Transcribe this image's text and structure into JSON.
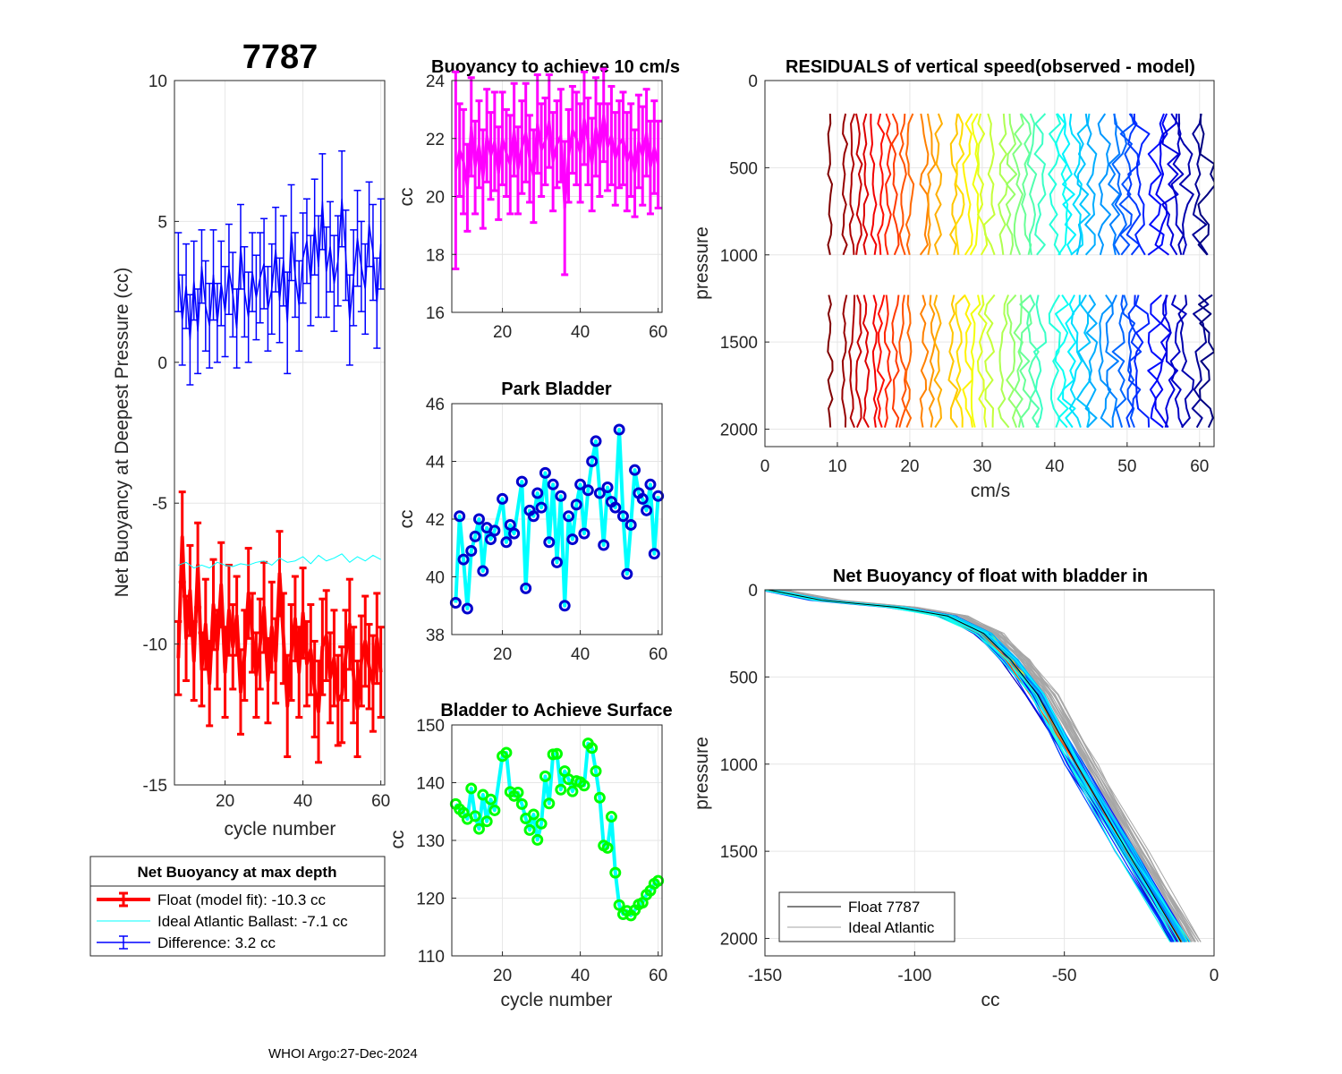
{
  "chart_data": [
    {
      "id": "main",
      "type": "line",
      "title": "7787",
      "xlabel": "cycle number",
      "ylabel": "Net Buoyancy at Deepest Pressure (cc)",
      "xlim": [
        7,
        61
      ],
      "ylim": [
        -15,
        10
      ],
      "xticks": [
        20,
        40,
        60
      ],
      "yticks": [
        -15,
        -10,
        -5,
        0,
        5,
        10
      ],
      "legend": {
        "title": "Net Buoyancy at max depth",
        "entries": [
          "Float (model fit): -10.3 cc",
          "Ideal Atlantic Ballast:  -7.1 cc",
          "Difference:   3.2 cc"
        ]
      },
      "series": [
        {
          "name": "Float (model fit)",
          "color": "#ff0000",
          "x": [
            8,
            9,
            10,
            11,
            12,
            13,
            14,
            15,
            16,
            17,
            18,
            19,
            20,
            21,
            22,
            23,
            24,
            25,
            26,
            27,
            28,
            29,
            30,
            31,
            32,
            33,
            34,
            35,
            36,
            37,
            38,
            39,
            40,
            41,
            42,
            43,
            44,
            45,
            46,
            47,
            48,
            49,
            50,
            51,
            52,
            53,
            54,
            55,
            56,
            57,
            58,
            59,
            60
          ],
          "values": [
            -10.5,
            -6.2,
            -9.8,
            -8.1,
            -10.6,
            -7.2,
            -10.9,
            -9.3,
            -11.4,
            -8.6,
            -10.2,
            -7.9,
            -11.0,
            -8.8,
            -10.1,
            -9.0,
            -11.7,
            -10.4,
            -8.2,
            -9.6,
            -11.1,
            -10.0,
            -8.7,
            -11.3,
            -9.4,
            -10.6,
            -7.5,
            -9.8,
            -12.2,
            -10.3,
            -9.1,
            -11.0,
            -8.9,
            -10.7,
            -10.2,
            -11.6,
            -12.4,
            -10.1,
            -9.7,
            -11.2,
            -10.5,
            -12.0,
            -11.8,
            -10.4,
            -9.3,
            -11.1,
            -12.3,
            -10.6,
            -9.9,
            -10.8,
            -11.4,
            -9.8,
            -11.0
          ],
          "errors": [
            1.3,
            1.6,
            1.5,
            1.6,
            1.4,
            1.5,
            1.3,
            1.6,
            1.5,
            1.6,
            1.4,
            1.5,
            1.6,
            1.6,
            1.5,
            1.4,
            1.5,
            1.6,
            1.6,
            1.4,
            1.5,
            1.6,
            1.6,
            1.5,
            1.6,
            1.5,
            1.5,
            1.6,
            1.8,
            1.7,
            1.5,
            1.6,
            1.6,
            1.5,
            1.6,
            1.7,
            1.8,
            1.7,
            1.6,
            1.6,
            1.7,
            1.6,
            1.7,
            1.6,
            1.6,
            1.7,
            1.7,
            1.6,
            1.6,
            1.5,
            1.7,
            1.6,
            1.6
          ]
        },
        {
          "name": "Ideal Atlantic Ballast",
          "color": "#00ffff",
          "x": [
            8,
            10,
            12,
            14,
            16,
            18,
            20,
            22,
            24,
            26,
            28,
            30,
            32,
            34,
            36,
            38,
            40,
            42,
            44,
            46,
            48,
            50,
            52,
            54,
            56,
            58,
            60
          ],
          "values": [
            -7.2,
            -7.1,
            -7.3,
            -7.2,
            -7.3,
            -7.1,
            -7.2,
            -7.25,
            -7.15,
            -7.2,
            -7.1,
            -7.05,
            -7.2,
            -6.95,
            -7.1,
            -7.05,
            -6.9,
            -7.15,
            -6.85,
            -7.05,
            -6.95,
            -6.8,
            -7.1,
            -6.9,
            -7.05,
            -6.85,
            -7.0
          ]
        },
        {
          "name": "Difference",
          "color": "#0000ff",
          "x": [
            8,
            9,
            10,
            11,
            12,
            13,
            14,
            15,
            16,
            17,
            18,
            19,
            20,
            21,
            22,
            23,
            24,
            25,
            26,
            27,
            28,
            29,
            30,
            31,
            32,
            33,
            34,
            35,
            36,
            37,
            38,
            39,
            40,
            41,
            42,
            43,
            44,
            45,
            46,
            47,
            48,
            49,
            50,
            51,
            52,
            53,
            54,
            55,
            56,
            57,
            58,
            59,
            60
          ],
          "values": [
            3.2,
            1.5,
            2.7,
            0.8,
            2.9,
            1.1,
            3.4,
            2.0,
            1.3,
            3.1,
            1.4,
            2.8,
            1.8,
            3.3,
            2.4,
            1.2,
            4.1,
            2.5,
            1.6,
            3.2,
            2.3,
            3.0,
            3.5,
            1.9,
            2.6,
            4.0,
            2.2,
            3.6,
            1.4,
            4.6,
            3.1,
            2.0,
            3.7,
            4.3,
            2.9,
            4.8,
            3.4,
            5.7,
            3.2,
            4.1,
            2.8,
            3.6,
            5.8,
            3.8,
            1.5,
            3.0,
            4.4,
            3.4,
            2.6,
            4.9,
            3.9,
            2.1,
            4.2
          ],
          "errors": [
            1.4,
            1.6,
            1.5,
            1.6,
            1.4,
            1.5,
            1.3,
            1.6,
            1.5,
            1.6,
            1.4,
            1.5,
            1.6,
            1.6,
            1.5,
            1.4,
            1.5,
            1.6,
            1.6,
            1.4,
            1.5,
            1.6,
            1.6,
            1.5,
            1.6,
            1.5,
            1.5,
            1.6,
            1.8,
            1.7,
            1.5,
            1.6,
            1.6,
            1.5,
            1.6,
            1.7,
            1.8,
            1.7,
            1.6,
            1.6,
            1.7,
            1.6,
            1.7,
            1.6,
            1.6,
            1.7,
            1.7,
            1.6,
            1.6,
            1.5,
            1.7,
            1.6,
            1.6
          ]
        }
      ]
    },
    {
      "id": "buoy10",
      "type": "line",
      "title": "Buoyancy to achieve 10 cm/s",
      "xlabel": "",
      "ylabel": "cc",
      "xlim": [
        7,
        61
      ],
      "ylim": [
        16,
        24
      ],
      "xticks": [
        20,
        40,
        60
      ],
      "yticks": [
        16,
        18,
        20,
        22,
        24
      ],
      "series": [
        {
          "name": "buoyancy",
          "color": "#ff00ff",
          "x": [
            8,
            9,
            10,
            11,
            12,
            13,
            14,
            15,
            16,
            17,
            18,
            19,
            20,
            21,
            22,
            23,
            24,
            25,
            26,
            27,
            28,
            29,
            30,
            31,
            32,
            33,
            34,
            35,
            36,
            37,
            38,
            39,
            40,
            41,
            42,
            43,
            44,
            45,
            46,
            47,
            48,
            49,
            50,
            51,
            52,
            53,
            54,
            55,
            56,
            57,
            58,
            59,
            60
          ],
          "values": [
            20.9,
            21.6,
            21.2,
            20.3,
            22.4,
            21.0,
            21.8,
            20.6,
            22.1,
            21.4,
            21.9,
            20.8,
            22.0,
            21.5,
            21.1,
            22.3,
            20.9,
            21.7,
            22.2,
            21.3,
            20.7,
            22.5,
            21.6,
            21.9,
            22.6,
            21.2,
            21.8,
            22.1,
            19.6,
            21.4,
            22.3,
            22.0,
            21.5,
            22.7,
            21.9,
            21.1,
            22.4,
            21.6,
            22.8,
            21.7,
            22.1,
            21.3,
            21.8,
            22.0,
            21.2,
            21.6,
            20.8,
            21.9,
            21.4,
            22.2,
            21.0,
            21.7,
            21.1
          ],
          "errors": [
            3.4,
            1.6,
            1.8,
            1.5,
            1.7,
            1.6,
            1.5,
            1.7,
            1.6,
            1.5,
            1.7,
            1.6,
            1.6,
            1.5,
            1.7,
            1.6,
            1.5,
            1.6,
            1.7,
            1.5,
            1.6,
            1.7,
            1.6,
            1.5,
            1.6,
            1.7,
            1.5,
            1.6,
            2.3,
            1.6,
            1.5,
            1.6,
            1.7,
            1.6,
            1.5,
            1.6,
            1.7,
            1.6,
            1.6,
            1.5,
            1.7,
            1.6,
            1.5,
            1.6,
            1.7,
            1.6,
            1.5,
            1.6,
            1.7,
            1.5,
            1.6,
            1.6,
            1.5
          ]
        }
      ]
    },
    {
      "id": "park",
      "type": "line",
      "title": "Park Bladder",
      "xlabel": "",
      "ylabel": "cc",
      "xlim": [
        7,
        61
      ],
      "ylim": [
        38,
        46
      ],
      "xticks": [
        20,
        40,
        60
      ],
      "yticks": [
        38,
        40,
        42,
        44,
        46
      ],
      "series": [
        {
          "name": "park bladder",
          "color": "#00ffff",
          "marker_color": "#0000cd",
          "x": [
            8,
            9,
            10,
            11,
            12,
            13,
            14,
            15,
            16,
            17,
            18,
            20,
            21,
            22,
            23,
            25,
            26,
            27,
            28,
            29,
            30,
            31,
            32,
            33,
            34,
            35,
            36,
            37,
            38,
            39,
            40,
            41,
            42,
            43,
            44,
            45,
            46,
            47,
            48,
            49,
            50,
            51,
            52,
            53,
            54,
            55,
            56,
            57,
            58,
            59,
            60
          ],
          "values": [
            39.1,
            42.1,
            40.6,
            38.9,
            40.9,
            41.4,
            42.0,
            40.2,
            41.7,
            41.3,
            41.6,
            42.7,
            41.2,
            41.8,
            41.5,
            43.3,
            39.6,
            42.3,
            42.1,
            42.9,
            42.4,
            43.6,
            41.2,
            43.2,
            40.5,
            42.8,
            39.0,
            42.1,
            41.3,
            42.5,
            43.2,
            41.5,
            43.0,
            44.0,
            44.7,
            42.9,
            41.1,
            43.1,
            42.6,
            42.4,
            45.1,
            42.1,
            40.1,
            41.8,
            43.7,
            42.9,
            42.7,
            42.3,
            43.2,
            40.8,
            42.8
          ]
        }
      ]
    },
    {
      "id": "surface",
      "type": "line",
      "title": "Bladder to Achieve Surface",
      "xlabel": "cycle number",
      "ylabel": "cc",
      "xlim": [
        7,
        61
      ],
      "ylim": [
        110,
        150
      ],
      "xticks": [
        20,
        40,
        60
      ],
      "yticks": [
        110,
        120,
        130,
        140,
        150
      ],
      "series": [
        {
          "name": "surface bladder",
          "color": "#00ffff",
          "marker_color": "#00ff00",
          "x": [
            8,
            9,
            10,
            11,
            12,
            13,
            14,
            15,
            16,
            17,
            18,
            20,
            21,
            22,
            23,
            24,
            25,
            26,
            27,
            28,
            29,
            30,
            31,
            32,
            33,
            34,
            35,
            36,
            37,
            38,
            39,
            40,
            41,
            42,
            43,
            44,
            45,
            46,
            47,
            48,
            49,
            50,
            51,
            52,
            53,
            54,
            55,
            56,
            57,
            58,
            59,
            60
          ],
          "values": [
            136.3,
            135.4,
            134.8,
            133.7,
            139.0,
            134.2,
            132.0,
            137.9,
            133.3,
            137.1,
            135.2,
            144.6,
            145.2,
            138.4,
            137.7,
            138.3,
            136.3,
            133.8,
            131.8,
            134.5,
            130.1,
            132.9,
            141.1,
            136.4,
            144.9,
            145.0,
            138.8,
            142.0,
            140.6,
            138.5,
            140.3,
            140.1,
            139.5,
            146.8,
            146.0,
            142.0,
            137.4,
            129.1,
            128.7,
            134.1,
            124.4,
            118.8,
            117.2,
            117.8,
            117.0,
            117.9,
            118.9,
            119.2,
            120.6,
            121.3,
            122.5,
            123.0
          ]
        }
      ]
    },
    {
      "id": "residuals",
      "type": "line",
      "title": "RESIDUALS of vertical speed(observed - model)",
      "xlabel": "cm/s",
      "ylabel": "pressure",
      "xlim": [
        0,
        62
      ],
      "ylim": [
        0,
        2100
      ],
      "xticks": [
        0,
        10,
        20,
        30,
        40,
        50,
        60
      ],
      "yticks": [
        0,
        500,
        1000,
        1500,
        2000
      ],
      "y_reversed": true,
      "profile_offsets": [
        9,
        11,
        12,
        13,
        14,
        15,
        16,
        17,
        18,
        19,
        20,
        22,
        23,
        24,
        26,
        27,
        28,
        29,
        30,
        31,
        33,
        34,
        35,
        36,
        37,
        38,
        40,
        41,
        42,
        43,
        44,
        45,
        47,
        48,
        49,
        50,
        51,
        52,
        54,
        55,
        56,
        57,
        58,
        60,
        61
      ],
      "profile_top_segment": [
        190,
        1000
      ],
      "profile_bottom_segment": [
        1230,
        1990
      ],
      "colormap": "jet"
    },
    {
      "id": "netbuoy",
      "type": "line",
      "title": "Net Buoyancy of float with bladder in",
      "xlabel": "cc",
      "ylabel": "pressure",
      "xlim": [
        -150,
        0
      ],
      "ylim": [
        0,
        2100
      ],
      "xticks": [
        -150,
        -100,
        -50,
        0
      ],
      "yticks": [
        0,
        500,
        1000,
        1500,
        2000
      ],
      "y_reversed": true,
      "legend": {
        "entries": [
          "Float 7787",
          "Ideal Atlantic"
        ],
        "colors": [
          "#000000",
          "#a6a6a6"
        ]
      },
      "base_curve": {
        "pressure": [
          0,
          60,
          100,
          150,
          250,
          400,
          600,
          1000,
          1500,
          2020
        ],
        "cc": [
          -148,
          -130,
          -105,
          -88,
          -76,
          -67,
          -58,
          -45,
          -28,
          -10
        ]
      },
      "profile_count": 40,
      "colormap": "jet"
    }
  ],
  "footer": "WHOI Argo:27-Dec-2024"
}
